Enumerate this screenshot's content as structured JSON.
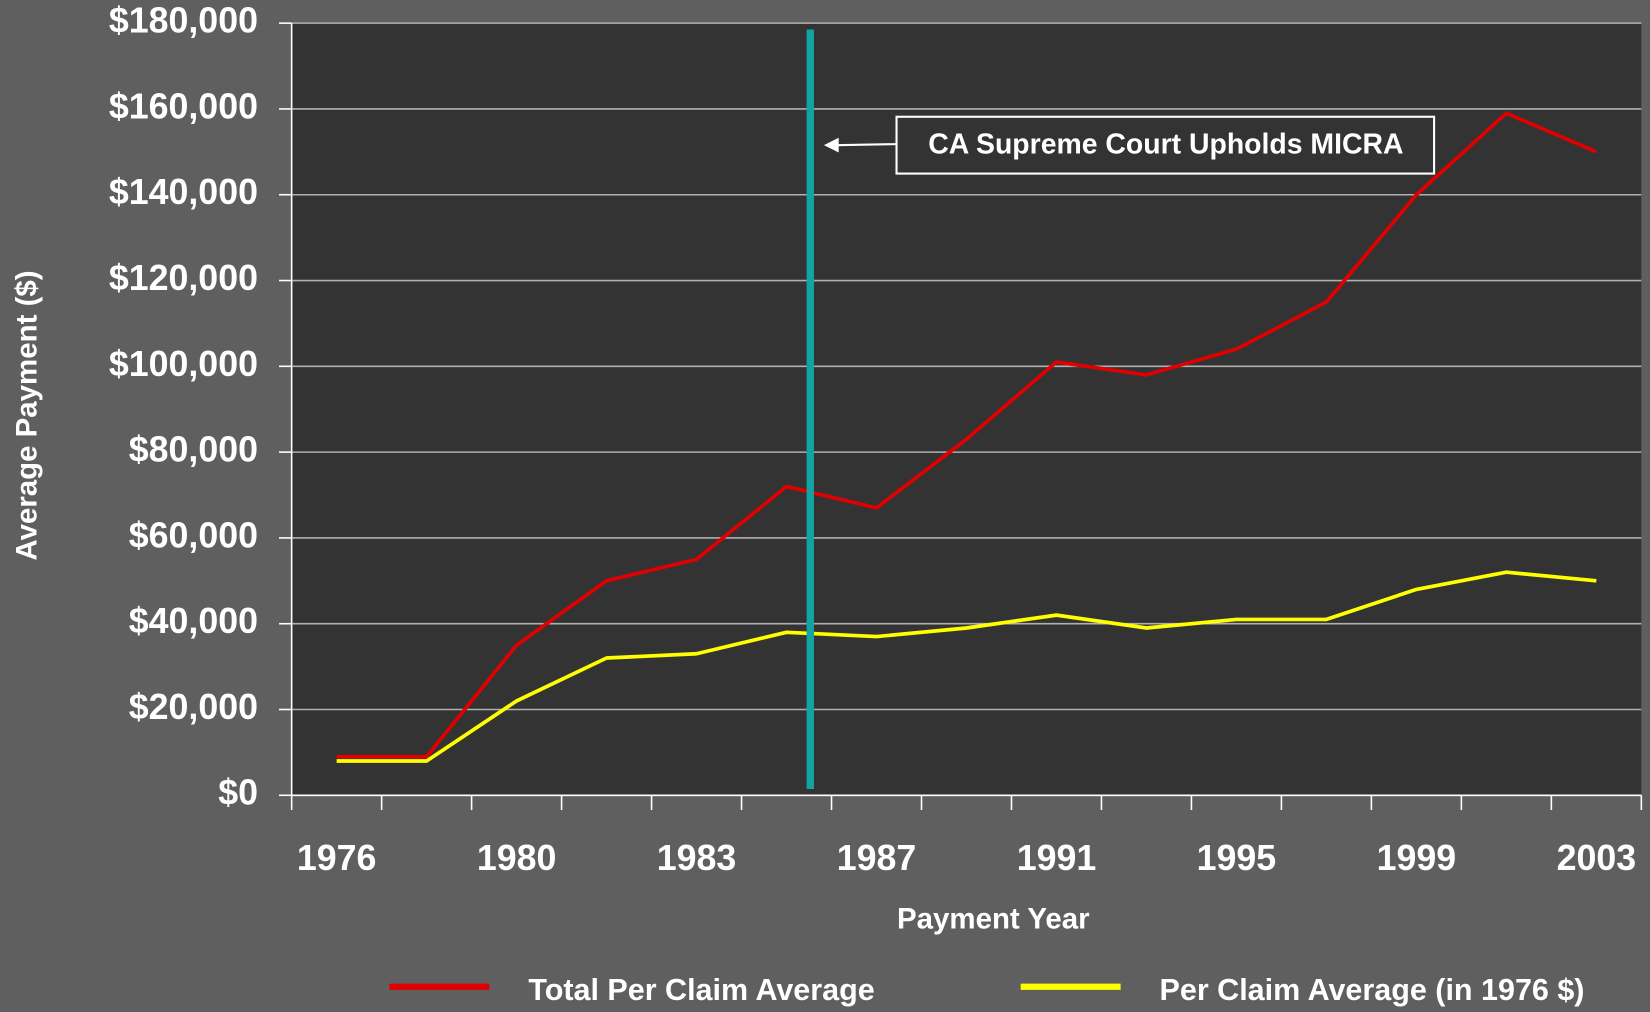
{
  "chart_data": {
    "type": "line",
    "x_label": "Payment Year",
    "y_label": "Average Payment ($)",
    "annotation": "CA Supreme Court Upholds MICRA",
    "categories": [
      "1976",
      null,
      "1980",
      null,
      "1983",
      null,
      "1987",
      null,
      "1991",
      null,
      "1995",
      null,
      "1999",
      null,
      "2003"
    ],
    "series": [
      {
        "name": "Total Per Claim Average",
        "color": "#e00000",
        "values": [
          9000,
          9000,
          35000,
          50000,
          55000,
          72000,
          67000,
          83000,
          101000,
          98000,
          104000,
          115000,
          140000,
          159000,
          150000
        ]
      },
      {
        "name": "Per Claim Average (in 1976 $)",
        "color": "#ffff00",
        "values": [
          8000,
          8000,
          22000,
          32000,
          33000,
          38000,
          37000,
          39000,
          42000,
          39000,
          41000,
          41000,
          48000,
          52000,
          50000
        ]
      }
    ],
    "ylim": [
      0,
      180000
    ],
    "yticks": [
      {
        "value": 0,
        "label": "$0"
      },
      {
        "value": 20000,
        "label": "$20,000"
      },
      {
        "value": 40000,
        "label": "$40,000"
      },
      {
        "value": 60000,
        "label": "$60,000"
      },
      {
        "value": 80000,
        "label": "$80,000"
      },
      {
        "value": 100000,
        "label": "$100,000"
      },
      {
        "value": 120000,
        "label": "$120,000"
      },
      {
        "value": 140000,
        "label": "$140,000"
      },
      {
        "value": 160000,
        "label": "$160,000"
      },
      {
        "value": 180000,
        "label": "$180,000"
      }
    ],
    "grid": true,
    "legend": "bottom"
  }
}
